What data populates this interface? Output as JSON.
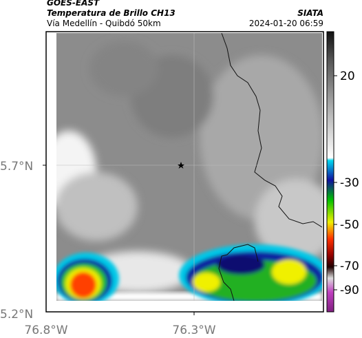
{
  "header": {
    "source": "GOES-EAST",
    "product": "Temperatura de Brillo CH13",
    "region": "Vía Medellín - Quibdó 50km",
    "agency": "SIATA",
    "timestamp": "2024-01-20 06:59"
  },
  "lat_ticks": [
    "5.7°N",
    "5.2°N"
  ],
  "lon_ticks": [
    "76.8°W",
    "76.3°W"
  ],
  "colorbar": {
    "ticks": [
      20,
      -30,
      -50,
      -70,
      -90
    ]
  }
}
